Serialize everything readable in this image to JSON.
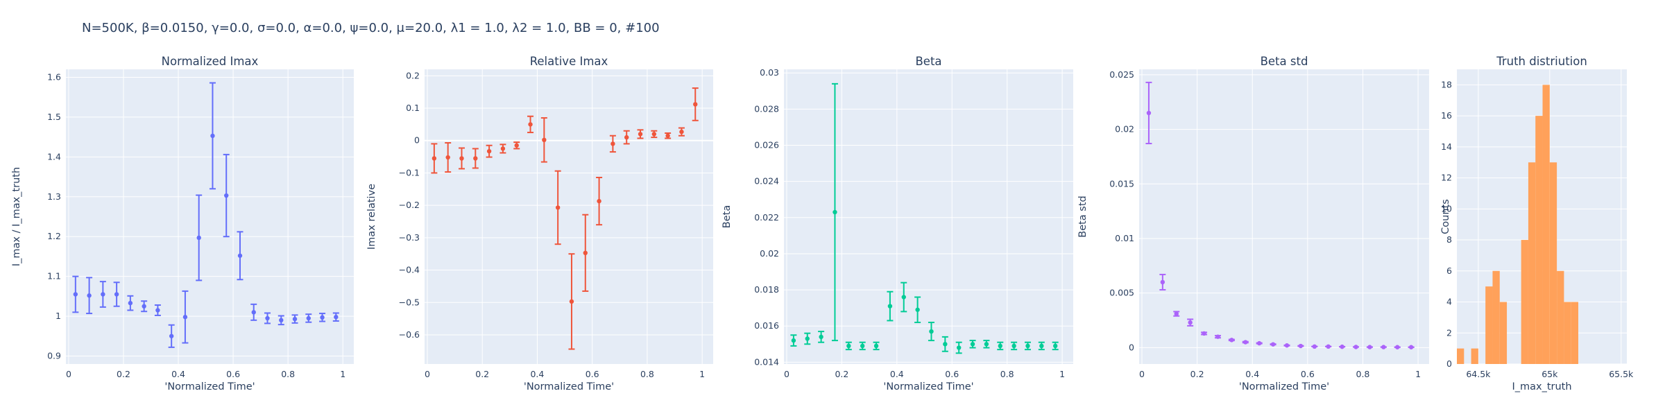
{
  "figure_title": "N=500K, β=0.0150, γ=0.0, σ=0.0,  α=0.0, ψ=0.0, μ=20.0, λ1 = 1.0, λ2 = 1.0, BB = 0, #100",
  "colors": {
    "plot_bg": "#e5ecf6",
    "grid": "#ffffff",
    "text": "#2a3f5f",
    "series": [
      "#636efa",
      "#ef553b",
      "#00cc96",
      "#ab63fa",
      "#ffa15a"
    ]
  },
  "chart_data": [
    {
      "type": "scatter",
      "title": "Normalized Imax",
      "xlabel": "'Normalized Time'",
      "ylabel": "I_max / I_max_truth",
      "xlim": [
        -0.01,
        1.04
      ],
      "ylim": [
        0.88,
        1.62
      ],
      "xticks": [
        0,
        0.2,
        0.4,
        0.6,
        0.8,
        1
      ],
      "xtick_labels": [
        "0",
        "0.2",
        "0.4",
        "0.6",
        "0.8",
        "1"
      ],
      "yticks": [
        0.9,
        1,
        1.1,
        1.2,
        1.3,
        1.4,
        1.5,
        1.6
      ],
      "ytick_labels": [
        "0.9",
        "1",
        "1.1",
        "1.2",
        "1.3",
        "1.4",
        "1.5",
        "1.6"
      ],
      "grid": true,
      "x": [
        0.025,
        0.075,
        0.125,
        0.175,
        0.225,
        0.275,
        0.325,
        0.375,
        0.425,
        0.475,
        0.525,
        0.575,
        0.625,
        0.675,
        0.725,
        0.775,
        0.825,
        0.875,
        0.925,
        0.975
      ],
      "y": [
        1.055,
        1.052,
        1.055,
        1.055,
        1.033,
        1.025,
        1.015,
        0.95,
        0.998,
        1.197,
        1.453,
        1.303,
        1.152,
        1.01,
        0.995,
        0.99,
        0.993,
        0.995,
        0.997,
        0.998
      ],
      "err": [
        0.045,
        0.045,
        0.032,
        0.03,
        0.018,
        0.013,
        0.013,
        0.028,
        0.065,
        0.107,
        0.133,
        0.103,
        0.06,
        0.02,
        0.013,
        0.011,
        0.01,
        0.01,
        0.01,
        0.01
      ]
    },
    {
      "type": "scatter",
      "title": "Relative Imax",
      "xlabel": "'Normalized Time'",
      "ylabel": "Imax relative",
      "xlim": [
        -0.01,
        1.04
      ],
      "ylim": [
        -0.69,
        0.22
      ],
      "xticks": [
        0,
        0.2,
        0.4,
        0.6,
        0.8,
        1
      ],
      "xtick_labels": [
        "0",
        "0.2",
        "0.4",
        "0.6",
        "0.8",
        "1"
      ],
      "yticks": [
        -0.6,
        -0.5,
        -0.4,
        -0.3,
        -0.2,
        -0.1,
        0,
        0.1,
        0.2
      ],
      "ytick_labels": [
        "−0.6",
        "−0.5",
        "−0.4",
        "−0.3",
        "−0.2",
        "−0.1",
        "0",
        "0.1",
        "0.2"
      ],
      "grid": true,
      "zeroline": true,
      "x": [
        0.025,
        0.075,
        0.125,
        0.175,
        0.225,
        0.275,
        0.325,
        0.375,
        0.425,
        0.475,
        0.525,
        0.575,
        0.625,
        0.675,
        0.725,
        0.775,
        0.825,
        0.875,
        0.925,
        0.975
      ],
      "y": [
        -0.055,
        -0.052,
        -0.055,
        -0.055,
        -0.033,
        -0.025,
        -0.015,
        0.05,
        0.002,
        -0.207,
        -0.497,
        -0.347,
        -0.187,
        -0.01,
        0.01,
        0.02,
        0.02,
        0.015,
        0.027,
        0.112
      ],
      "err": [
        0.045,
        0.045,
        0.032,
        0.03,
        0.018,
        0.013,
        0.01,
        0.025,
        0.068,
        0.113,
        0.147,
        0.118,
        0.073,
        0.025,
        0.02,
        0.013,
        0.01,
        0.008,
        0.012,
        0.05
      ]
    },
    {
      "type": "scatter",
      "title": "Beta",
      "xlabel": "'Normalized Time'",
      "ylabel": "Beta",
      "xlim": [
        -0.01,
        1.04
      ],
      "ylim": [
        0.0139,
        0.0302
      ],
      "xticks": [
        0,
        0.2,
        0.4,
        0.6,
        0.8,
        1
      ],
      "xtick_labels": [
        "0",
        "0.2",
        "0.4",
        "0.6",
        "0.8",
        "1"
      ],
      "yticks": [
        0.014,
        0.016,
        0.018,
        0.02,
        0.022,
        0.024,
        0.026,
        0.028,
        0.03
      ],
      "ytick_labels": [
        "0.014",
        "0.016",
        "0.018",
        "0.02",
        "0.022",
        "0.024",
        "0.026",
        "0.028",
        "0.03"
      ],
      "grid": true,
      "x": [
        0.025,
        0.075,
        0.125,
        0.175,
        0.225,
        0.275,
        0.325,
        0.375,
        0.425,
        0.475,
        0.525,
        0.575,
        0.625,
        0.675,
        0.725,
        0.775,
        0.825,
        0.875,
        0.925,
        0.975
      ],
      "y": [
        0.0152,
        0.0153,
        0.0154,
        0.0223,
        0.0149,
        0.0149,
        0.0149,
        0.0171,
        0.0176,
        0.0169,
        0.0157,
        0.015,
        0.0148,
        0.015,
        0.015,
        0.0149,
        0.0149,
        0.0149,
        0.0149,
        0.0149
      ],
      "err": [
        0.0003,
        0.0003,
        0.0003,
        0.0071,
        0.0002,
        0.0002,
        0.0002,
        0.0008,
        0.0008,
        0.0007,
        0.0005,
        0.0004,
        0.0003,
        0.0002,
        0.0002,
        0.0002,
        0.0002,
        0.0002,
        0.0002,
        0.0002
      ]
    },
    {
      "type": "scatter",
      "title": "Beta std",
      "xlabel": "'Normalized Time'",
      "ylabel": "Beta std",
      "xlim": [
        -0.01,
        1.04
      ],
      "ylim": [
        -0.0015,
        0.0255
      ],
      "xticks": [
        0,
        0.2,
        0.4,
        0.6,
        0.8,
        1
      ],
      "xtick_labels": [
        "0",
        "0.2",
        "0.4",
        "0.6",
        "0.8",
        "1"
      ],
      "yticks": [
        0,
        0.005,
        0.01,
        0.015,
        0.02,
        0.025
      ],
      "ytick_labels": [
        "0",
        "0.005",
        "0.01",
        "0.015",
        "0.02",
        "0.025"
      ],
      "grid": true,
      "x": [
        0.025,
        0.075,
        0.125,
        0.175,
        0.225,
        0.275,
        0.325,
        0.375,
        0.425,
        0.475,
        0.525,
        0.575,
        0.625,
        0.675,
        0.725,
        0.775,
        0.825,
        0.875,
        0.925,
        0.975
      ],
      "y": [
        0.0215,
        0.006,
        0.0031,
        0.0023,
        0.0013,
        0.001,
        0.0007,
        0.0005,
        0.0004,
        0.0003,
        0.0002,
        0.00015,
        0.0001,
        0.0001,
        8e-05,
        6e-05,
        5e-05,
        5e-05,
        4e-05,
        4e-05
      ],
      "err": [
        0.0028,
        0.0007,
        0.0002,
        0.0003,
        0.0001,
        0.0001,
        5e-05,
        5e-05,
        3e-05,
        3e-05,
        2e-05,
        2e-05,
        1e-05,
        1e-05,
        1e-05,
        1e-05,
        1e-05,
        1e-05,
        1e-05,
        1e-05
      ]
    },
    {
      "type": "bar",
      "title": "Truth distriution",
      "xlabel": "I_max_truth",
      "ylabel": "Counts",
      "xlim": [
        64350,
        65540
      ],
      "ylim": [
        0,
        19
      ],
      "xticks": [
        64500,
        65000,
        65500
      ],
      "xtick_labels": [
        "64.5k",
        "65k",
        "65.5k"
      ],
      "yticks": [
        0,
        2,
        4,
        6,
        8,
        10,
        12,
        14,
        16,
        18
      ],
      "ytick_labels": [
        "0",
        "2",
        "4",
        "6",
        "8",
        "10",
        "12",
        "14",
        "16",
        "18"
      ],
      "grid": true,
      "bin_edges": [
        64350,
        64400,
        64450,
        64500,
        64550,
        64600,
        64650,
        64700,
        64750,
        64800,
        64850,
        64900,
        64950,
        65000,
        65050,
        65100,
        65150,
        65200,
        65250,
        65300,
        65350,
        65400,
        65450,
        65500,
        65540
      ],
      "counts": [
        1,
        0,
        1,
        0,
        5,
        6,
        4,
        0,
        0,
        8,
        13,
        16,
        18,
        13,
        6,
        4,
        4,
        0,
        0,
        0,
        0,
        0,
        0,
        0
      ]
    }
  ]
}
